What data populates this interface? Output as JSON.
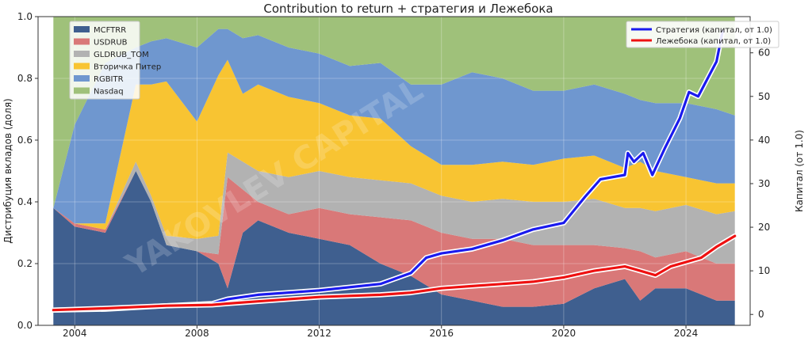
{
  "chart_data": {
    "type": "area",
    "title": "Contribution to return + стратегия и Лежебока",
    "ylabel": "Дистрибуция вкладов (доля)",
    "y2label": "Капитал (от 1.0)",
    "ylim": [
      0,
      1.0
    ],
    "y2lim": [
      -2.5,
      68.3
    ],
    "xlim": [
      2002.8,
      2026.1
    ],
    "x_ticks": [
      2004,
      2008,
      2012,
      2016,
      2020,
      2024
    ],
    "y_ticks": [
      0.0,
      0.2,
      0.4,
      0.6,
      0.8,
      1.0
    ],
    "y2_ticks": [
      0,
      10,
      20,
      30,
      40,
      50,
      60
    ],
    "grid": true,
    "watermark": "YAKOVLEV CAPITAL",
    "x": [
      2003.3,
      2004.0,
      2005.0,
      2006.0,
      2006.5,
      2007.0,
      2008.0,
      2008.7,
      2009.0,
      2009.5,
      2010.0,
      2011.0,
      2012.0,
      2013.0,
      2014.0,
      2015.0,
      2016.0,
      2017.0,
      2018.0,
      2019.0,
      2020.0,
      2021.0,
      2022.0,
      2022.5,
      2023.0,
      2024.0,
      2025.0,
      2025.6
    ],
    "series": [
      {
        "name": "MCFTRR",
        "color": "#3f5f8f",
        "values": [
          0.38,
          0.32,
          0.3,
          0.5,
          0.4,
          0.26,
          0.24,
          0.2,
          0.12,
          0.3,
          0.34,
          0.3,
          0.28,
          0.26,
          0.2,
          0.16,
          0.1,
          0.08,
          0.06,
          0.06,
          0.07,
          0.12,
          0.15,
          0.08,
          0.12,
          0.12,
          0.08,
          0.08
        ]
      },
      {
        "name": "USDRUB",
        "color": "#d97878",
        "values": [
          0.0,
          0.01,
          0.01,
          0.0,
          0.0,
          0.0,
          0.0,
          0.03,
          0.36,
          0.14,
          0.06,
          0.06,
          0.1,
          0.1,
          0.15,
          0.18,
          0.2,
          0.2,
          0.22,
          0.2,
          0.19,
          0.14,
          0.1,
          0.16,
          0.1,
          0.12,
          0.12,
          0.12
        ]
      },
      {
        "name": "GLDRUB_TOM",
        "color": "#b2b2b2",
        "values": [
          0.0,
          0.0,
          0.0,
          0.03,
          0.02,
          0.03,
          0.04,
          0.06,
          0.08,
          0.09,
          0.1,
          0.12,
          0.12,
          0.12,
          0.12,
          0.12,
          0.12,
          0.12,
          0.13,
          0.14,
          0.14,
          0.15,
          0.13,
          0.14,
          0.15,
          0.15,
          0.16,
          0.17
        ]
      },
      {
        "name": "Вторичка Питер",
        "color": "#f8c432",
        "values": [
          0.0,
          0.0,
          0.02,
          0.25,
          0.36,
          0.5,
          0.38,
          0.52,
          0.3,
          0.22,
          0.28,
          0.26,
          0.22,
          0.2,
          0.2,
          0.12,
          0.1,
          0.12,
          0.12,
          0.12,
          0.14,
          0.14,
          0.13,
          0.15,
          0.13,
          0.09,
          0.1,
          0.09
        ]
      },
      {
        "name": "RGBITR",
        "color": "#6f97cf",
        "values": [
          0.0,
          0.32,
          0.52,
          0.12,
          0.14,
          0.14,
          0.24,
          0.15,
          0.1,
          0.18,
          0.16,
          0.16,
          0.16,
          0.16,
          0.18,
          0.2,
          0.26,
          0.3,
          0.27,
          0.24,
          0.22,
          0.23,
          0.24,
          0.2,
          0.22,
          0.24,
          0.24,
          0.22
        ]
      },
      {
        "name": "Nasdaq",
        "color": "#9fc17a",
        "values": [
          0.62,
          0.35,
          0.15,
          0.1,
          0.08,
          0.07,
          0.1,
          0.04,
          0.04,
          0.07,
          0.06,
          0.1,
          0.12,
          0.16,
          0.15,
          0.22,
          0.22,
          0.18,
          0.2,
          0.24,
          0.24,
          0.22,
          0.25,
          0.27,
          0.28,
          0.28,
          0.3,
          0.32
        ]
      }
    ],
    "lines": [
      {
        "name": "Стратегия (капитал, от 1.0)",
        "color": "#1a1aee",
        "axis": "right",
        "x": [
          2003.3,
          2005.0,
          2007.0,
          2008.5,
          2009.0,
          2010.0,
          2012.0,
          2014.0,
          2015.0,
          2015.5,
          2016.0,
          2017.0,
          2018.0,
          2019.0,
          2020.0,
          2020.7,
          2021.2,
          2022.0,
          2022.1,
          2022.3,
          2022.6,
          2022.9,
          2023.3,
          2023.8,
          2024.1,
          2024.4,
          2024.7,
          2025.0,
          2025.2
        ],
        "values": [
          1.0,
          1.2,
          2.0,
          2.5,
          3.5,
          4.5,
          5.5,
          7.0,
          9.5,
          13.0,
          14.0,
          15.0,
          17.0,
          19.5,
          21.0,
          27.0,
          31.0,
          32.0,
          37.0,
          35.0,
          37.0,
          32.0,
          38.0,
          45.0,
          51.0,
          50.0,
          54.0,
          58.0,
          65.0
        ]
      },
      {
        "name": "Лежебока (капитал, от 1.0)",
        "color": "#ee1111",
        "axis": "right",
        "x": [
          2003.3,
          2005.0,
          2007.0,
          2008.5,
          2009.0,
          2010.0,
          2012.0,
          2014.0,
          2015.0,
          2016.0,
          2017.0,
          2018.0,
          2019.0,
          2020.0,
          2021.0,
          2022.0,
          2022.5,
          2023.0,
          2023.5,
          2024.0,
          2024.5,
          2025.0,
          2025.6
        ],
        "values": [
          1.0,
          1.4,
          2.0,
          2.2,
          2.5,
          3.0,
          4.0,
          4.5,
          5.0,
          6.0,
          6.5,
          7.0,
          7.5,
          8.5,
          10.0,
          11.0,
          10.0,
          9.0,
          11.0,
          12.0,
          13.0,
          15.5,
          18.0
        ]
      }
    ],
    "legend_left": {
      "position": "top-left"
    },
    "legend_right": {
      "position": "top-right"
    }
  }
}
